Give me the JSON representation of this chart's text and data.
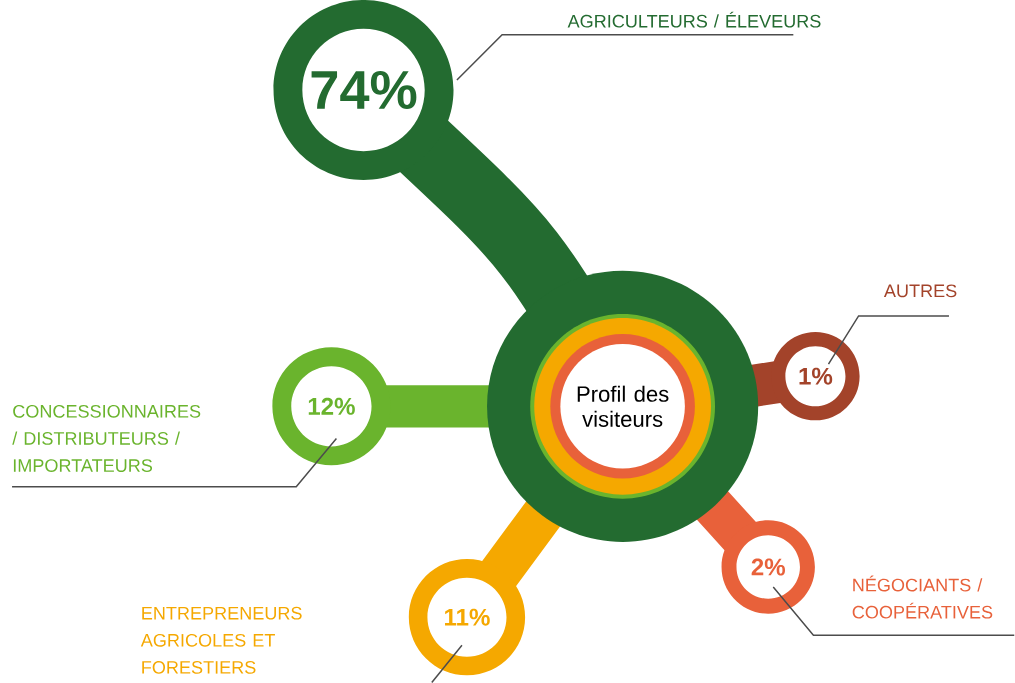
{
  "chart_data": {
    "type": "other",
    "title": "Profil des visiteurs",
    "categories": [
      "AGRICULTEURS / ÉLEVEURS",
      "CONCESSIONNAIRES / DISTRIBUTEURS / IMPORTATEURS",
      "ENTREPRENEURS AGRICOLES ET FORESTIERS",
      "NÉGOCIANTS / COOPÉRATIVES",
      "AUTRES"
    ],
    "values": [
      74,
      12,
      11,
      2,
      1
    ],
    "value_labels": [
      "74%",
      "12%",
      "11%",
      "2%",
      "1%"
    ],
    "colors": [
      "#236b30",
      "#6ab42d",
      "#f5a800",
      "#e8613a",
      "#a3432a"
    ]
  }
}
